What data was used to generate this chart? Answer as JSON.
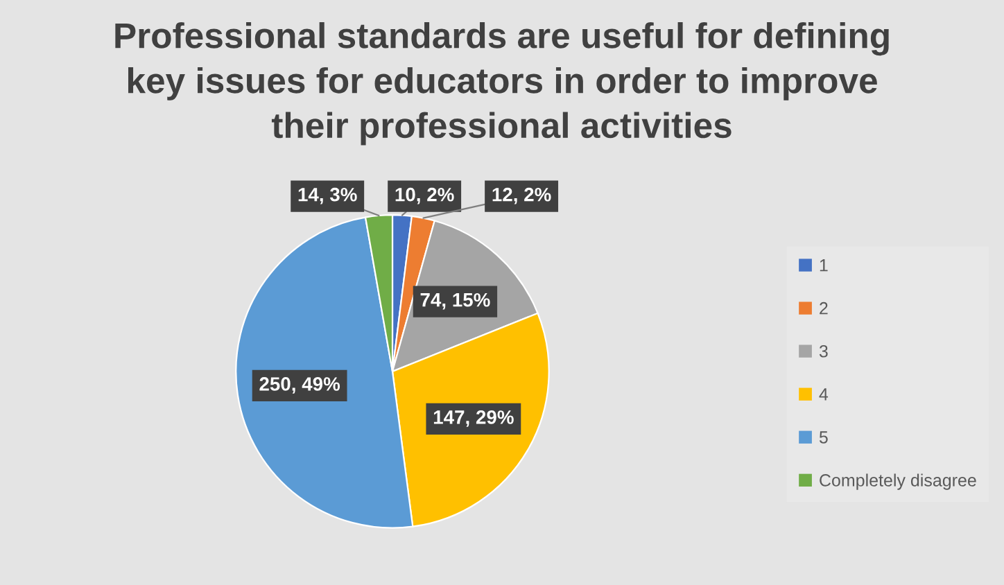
{
  "chart_data": {
    "type": "pie",
    "title": "Professional standards are useful for defining\nkey issues for educators in order to improve\ntheir professional activities",
    "categories": [
      "1",
      "2",
      "3",
      "4",
      "5",
      "Completely disagree"
    ],
    "values": [
      10,
      12,
      74,
      147,
      250,
      14
    ],
    "colors": [
      "#4472c4",
      "#ed7d31",
      "#a5a5a5",
      "#ffc000",
      "#5b9bd5",
      "#70ad47"
    ],
    "value_labels": [
      "10, 2%",
      "12, 2%",
      "74, 15%",
      "147, 29%",
      "250, 49%",
      "14, 3%"
    ],
    "legend": "right"
  }
}
